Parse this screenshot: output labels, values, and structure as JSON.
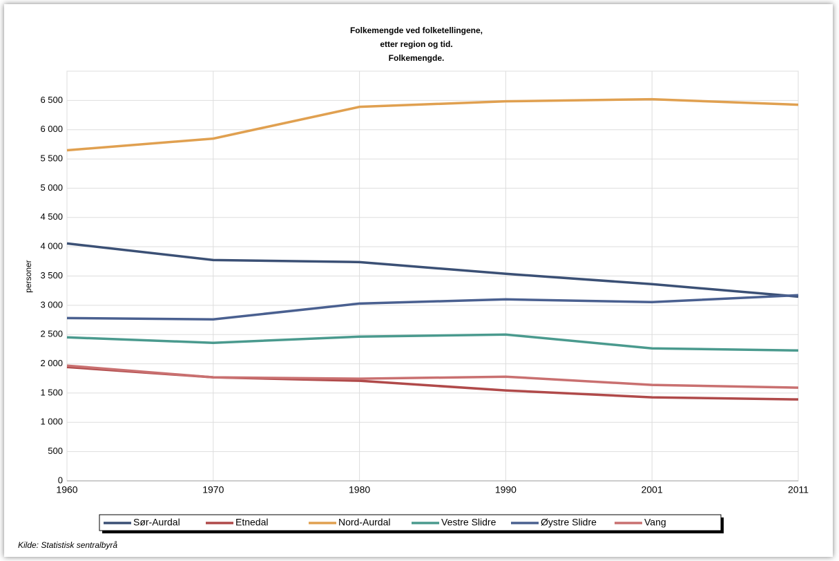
{
  "chart_data": {
    "type": "line",
    "title": [
      "Folkemengde ved folketellingene,",
      "etter region og tid.",
      "Folkemengde."
    ],
    "ylabel": "personer",
    "source": "Kilde: Statistisk sentralbyrå",
    "categories": [
      "1960",
      "1970",
      "1980",
      "1990",
      "2001",
      "2011"
    ],
    "ylim": [
      0,
      7000
    ],
    "yticks": [
      0,
      500,
      {
        "value": 1000,
        "label": "1 000"
      },
      {
        "value": 1500,
        "label": "1 500"
      },
      {
        "value": 2000,
        "label": "2 000"
      },
      {
        "value": 2500,
        "label": "2 500"
      },
      {
        "value": 3000,
        "label": "3 000"
      },
      {
        "value": 3500,
        "label": "3 500"
      },
      {
        "value": 4000,
        "label": "4 000"
      },
      {
        "value": 4500,
        "label": "4 500"
      },
      {
        "value": 5000,
        "label": "5 000"
      },
      {
        "value": 5500,
        "label": "5 500"
      },
      {
        "value": 6000,
        "label": "6 000"
      },
      {
        "value": 6500,
        "label": "6 500"
      }
    ],
    "grid": true,
    "series": [
      {
        "name": "Sør-Aurdal",
        "color": "#3b5075",
        "values": [
          4056,
          3773,
          3738,
          3538,
          3361,
          3148
        ]
      },
      {
        "name": "Etnedal",
        "color": "#b04a4a",
        "values": [
          1945,
          1769,
          1710,
          1545,
          1427,
          1391
        ]
      },
      {
        "name": "Nord-Aurdal",
        "color": "#e0a050",
        "values": [
          5648,
          5848,
          6390,
          6485,
          6520,
          6426
        ]
      },
      {
        "name": "Vestre Slidre",
        "color": "#4a9a8e",
        "values": [
          2452,
          2358,
          2464,
          2500,
          2264,
          2228
        ]
      },
      {
        "name": "Øystre Slidre",
        "color": "#4a6090",
        "values": [
          2782,
          2759,
          3030,
          3101,
          3054,
          3172
        ]
      },
      {
        "name": "Vang",
        "color": "#c97070",
        "values": [
          1969,
          1769,
          1745,
          1780,
          1639,
          1592
        ]
      }
    ]
  }
}
